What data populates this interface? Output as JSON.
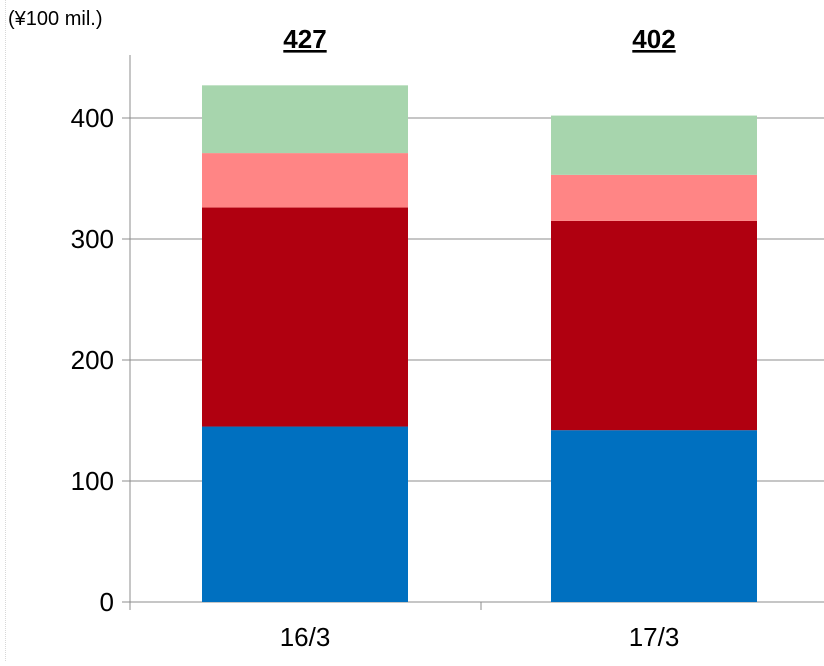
{
  "chart_data": {
    "type": "bar",
    "stacked": true,
    "unit_label": "(¥100 mil.)",
    "categories": [
      "16/3",
      "17/3"
    ],
    "totals": [
      "427",
      "402"
    ],
    "series": [
      {
        "values": [
          145,
          142
        ],
        "color": "#0070c0"
      },
      {
        "values": [
          181,
          173
        ],
        "color": "#b00010"
      },
      {
        "values": [
          45,
          38
        ],
        "color": "#ff8585"
      },
      {
        "values": [
          56,
          49
        ],
        "color": "#a7d5ad"
      }
    ],
    "y_ticks": [
      "0",
      "100",
      "200",
      "300",
      "400"
    ],
    "ylim": [
      0,
      400
    ],
    "grid": true,
    "legend": "none"
  }
}
